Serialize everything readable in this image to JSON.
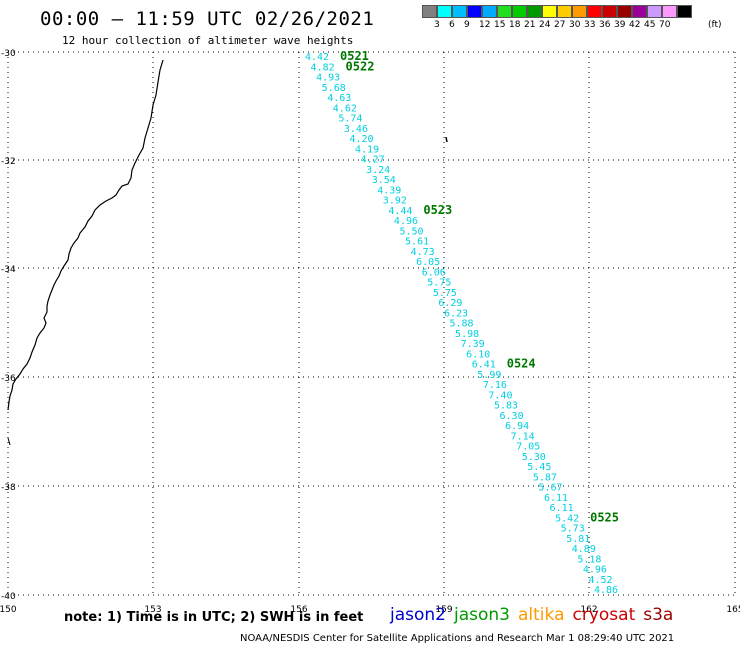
{
  "title": "00:00 – 11:59 UTC 02/26/2021",
  "subtitle": "12 hour collection of altimeter wave heights",
  "legend": {
    "unit": "(ft)",
    "colors": [
      "#808080",
      "#00ffff",
      "#00bfff",
      "#0000ff",
      "#00aaff",
      "#22dd22",
      "#00cc00",
      "#009900",
      "#ffff00",
      "#ffcc00",
      "#ff9900",
      "#ff0000",
      "#cc0000",
      "#990000",
      "#990099",
      "#cc99ff",
      "#ff99ff",
      "#000000"
    ],
    "labels": [
      "3",
      "6",
      "9",
      "12",
      "15",
      "18",
      "21",
      "24",
      "27",
      "30",
      "33",
      "36",
      "39",
      "42",
      "45",
      "70"
    ]
  },
  "axes": {
    "lon_labels": [
      "150",
      "153",
      "156",
      "159",
      "162",
      "165"
    ],
    "lat_labels": [
      "-30",
      "-32",
      "-34",
      "-36",
      "-38",
      "-40"
    ]
  },
  "track": {
    "color": "#00d0e0",
    "values": [
      "4.42",
      "4.82",
      "4.93",
      "5.68",
      "4.63",
      "4.62",
      "5.74",
      "3.46",
      "4.20",
      "4.19",
      "4.27",
      "3.24",
      "3.54",
      "4.39",
      "3.92",
      "4.44",
      "4.96",
      "5.50",
      "5.61",
      "4.73",
      "6.05",
      "6.06",
      "5.75",
      "5.75",
      "6.29",
      "6.23",
      "5.88",
      "5.98",
      "7.39",
      "6.10",
      "6.41",
      "5.99",
      "7.16",
      "7.40",
      "5.83",
      "6.30",
      "6.94",
      "7.14",
      "7.05",
      "5.30",
      "5.45",
      "5.87",
      "5.67",
      "6.11",
      "6.11",
      "5.42",
      "5.73",
      "5.81",
      "4.89",
      "5.18",
      "4.96",
      "4.52",
      "4.86"
    ]
  },
  "time_markers": [
    {
      "label": "0521",
      "value_index": 0
    },
    {
      "label": "0522",
      "value_index": 1
    },
    {
      "label": "0523",
      "value_index": 15
    },
    {
      "label": "0524",
      "value_index": 30
    },
    {
      "label": "0525",
      "value_index": 45
    }
  ],
  "note": "note: 1) Time is in UTC; 2) SWH is in feet",
  "satellites": [
    {
      "name": "jason2",
      "color": "#0000cc"
    },
    {
      "name": "jason3",
      "color": "#009900"
    },
    {
      "name": "altika",
      "color": "#ff9900"
    },
    {
      "name": "cryosat",
      "color": "#cc0000"
    },
    {
      "name": "s3a",
      "color": "#990000"
    }
  ],
  "credits": "NOAA/NESDIS Center for Satellite Applications and Research   Mar  1 08:29:40 UTC 2021"
}
